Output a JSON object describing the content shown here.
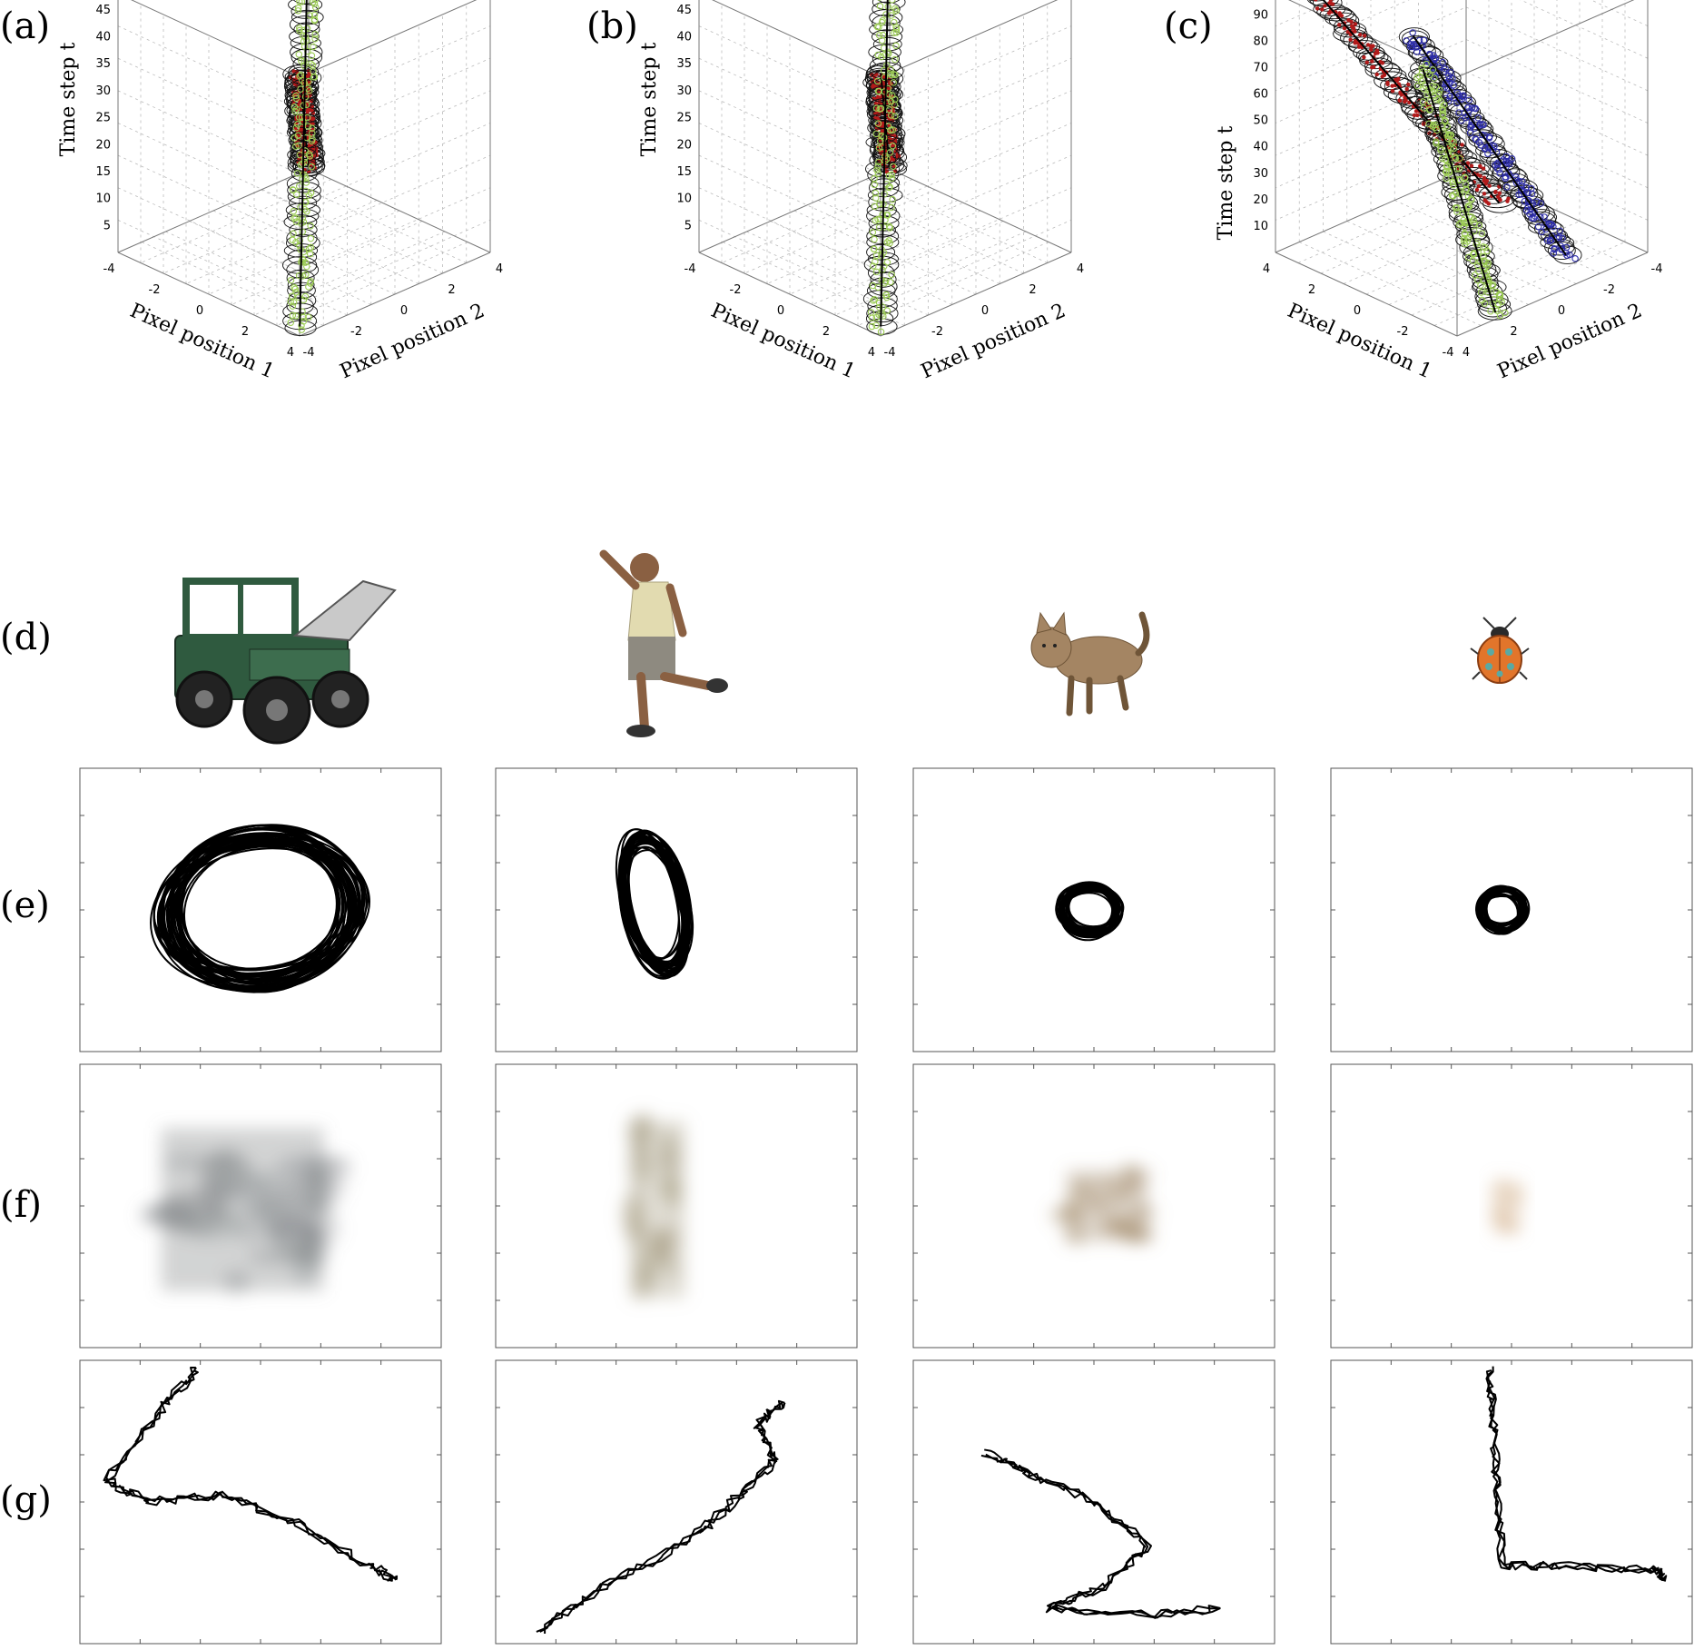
{
  "panel_labels": {
    "a": "(a)",
    "b": "(b)",
    "c": "(c)",
    "d": "(d)",
    "e": "(e)",
    "f": "(f)",
    "g": "(g)"
  },
  "axis_titles": {
    "time": "Time step t",
    "pixel1": "Pixel position 1",
    "pixel2": "Pixel position 2"
  },
  "colors": {
    "track_red": "#b21a1a",
    "track_green": "#9ccc55",
    "track_blue": "#2c2ca8",
    "line_black": "#000000",
    "frame": "#555555"
  },
  "object_icons": [
    "vehicle-utility-truck",
    "running-person",
    "cat",
    "ladybug"
  ],
  "chart_data": [
    {
      "panel": "a",
      "type": "scatter",
      "subtype": "3d-tracks",
      "title": "",
      "xlabel": "Pixel position 1",
      "ylabel": "Pixel position 2",
      "zlabel": "Time step t",
      "xlim": [
        -4,
        4
      ],
      "ylim": [
        -4,
        4
      ],
      "zlim": [
        0,
        48
      ],
      "x_ticks": [
        "-4",
        "-2",
        "0",
        "2",
        "4"
      ],
      "y_ticks": [
        "-4",
        "-2",
        "0",
        "2",
        "4"
      ],
      "z_ticks": [
        "5",
        "10",
        "15",
        "20",
        "25",
        "30",
        "35",
        "40",
        "45"
      ],
      "grid": true,
      "series": [
        {
          "color": "red",
          "start": [
            -3.8,
            -3.8,
            1
          ],
          "end": [
            3.8,
            3.8,
            48
          ]
        },
        {
          "color": "green",
          "start": [
            3.8,
            3.8,
            1
          ],
          "end": [
            -3.8,
            -3.8,
            48
          ]
        }
      ]
    },
    {
      "panel": "b",
      "type": "scatter",
      "subtype": "3d-tracks",
      "title": "",
      "xlabel": "Pixel position 1",
      "ylabel": "Pixel position 2",
      "zlabel": "Time step t",
      "xlim": [
        -4,
        4
      ],
      "ylim": [
        -4,
        4
      ],
      "zlim": [
        0,
        48
      ],
      "x_ticks": [
        "-4",
        "-2",
        "0",
        "2",
        "4"
      ],
      "y_ticks": [
        "-4",
        "-2",
        "0",
        "2",
        "4"
      ],
      "z_ticks": [
        "5",
        "10",
        "15",
        "20",
        "25",
        "30",
        "35",
        "40",
        "45"
      ],
      "grid": true,
      "series": [
        {
          "color": "red",
          "start": [
            -3.8,
            -3.8,
            1
          ],
          "end": [
            3.8,
            3.8,
            48
          ]
        },
        {
          "color": "green",
          "start": [
            3.8,
            3.8,
            1
          ],
          "end": [
            -3.8,
            -3.8,
            48
          ]
        }
      ]
    },
    {
      "panel": "c",
      "type": "scatter",
      "subtype": "3d-tracks",
      "title": "",
      "xlabel": "Pixel position 1",
      "ylabel": "Pixel position 2",
      "zlabel": "Time step t",
      "xlim": [
        -4,
        4
      ],
      "ylim": [
        -4,
        4
      ],
      "zlim": [
        0,
        98
      ],
      "x_ticks": [
        "4",
        "2",
        "0",
        "-2",
        "-4"
      ],
      "y_ticks": [
        "4",
        "2",
        "0",
        "-2",
        "-4"
      ],
      "z_ticks": [
        "10",
        "20",
        "30",
        "40",
        "50",
        "60",
        "70",
        "80",
        "90"
      ],
      "grid": true,
      "series": [
        {
          "color": "red",
          "start": [
            1.5,
            3.0,
            1
          ],
          "end": [
            4.0,
            -2.5,
            95
          ]
        },
        {
          "color": "blue",
          "start": [
            -2.5,
            2.0,
            1
          ],
          "end": [
            -1.0,
            -3.0,
            98
          ]
        },
        {
          "color": "green",
          "start": [
            -3.8,
            -2.2,
            1
          ],
          "end": [
            -2.5,
            -4.0,
            95
          ]
        }
      ]
    },
    {
      "panel": "e",
      "type": "line",
      "subtype": "closed-curves",
      "objects": [
        {
          "object": "vehicle",
          "shape": "ellipse",
          "cx": 0.0,
          "cy": 0.0,
          "rx": 0.55,
          "ry": 0.45,
          "tilt_deg": -8,
          "loops": 40
        },
        {
          "object": "person",
          "shape": "ellipse",
          "cx": -0.12,
          "cy": 0.05,
          "rx": 0.17,
          "ry": 0.4,
          "tilt_deg": -12,
          "loops": 30
        },
        {
          "object": "cat",
          "shape": "ellipse",
          "cx": -0.02,
          "cy": 0.0,
          "rx": 0.16,
          "ry": 0.14,
          "tilt_deg": 0,
          "loops": 25
        },
        {
          "object": "ladybug",
          "shape": "ellipse",
          "cx": -0.05,
          "cy": 0.0,
          "rx": 0.12,
          "ry": 0.12,
          "tilt_deg": 0,
          "loops": 25
        }
      ]
    },
    {
      "panel": "f",
      "type": "heatmap",
      "subtype": "blurred-appearance",
      "objects": [
        {
          "object": "vehicle",
          "tone": "#7d8284",
          "extent": [
            -0.55,
            -0.6,
            0.35,
            0.55
          ]
        },
        {
          "object": "person",
          "tone": "#a79e84",
          "extent": [
            -0.25,
            -0.65,
            0.05,
            0.6
          ]
        },
        {
          "object": "cat",
          "tone": "#9f8766",
          "extent": [
            -0.15,
            -0.25,
            0.3,
            0.25
          ]
        },
        {
          "object": "ladybug",
          "tone": "#d2b08a",
          "extent": [
            -0.1,
            -0.18,
            0.05,
            0.18
          ]
        }
      ]
    },
    {
      "panel": "g",
      "type": "line",
      "subtype": "trajectories",
      "objects": [
        {
          "object": "vehicle",
          "points": [
            [
              -0.35,
              0.95
            ],
            [
              -0.55,
              0.65
            ],
            [
              -0.85,
              0.15
            ],
            [
              -0.62,
              0.0
            ],
            [
              -0.2,
              0.05
            ],
            [
              0.2,
              -0.15
            ],
            [
              0.6,
              -0.45
            ],
            [
              0.75,
              -0.55
            ]
          ]
        },
        {
          "object": "person",
          "points": [
            [
              -0.75,
              -0.9
            ],
            [
              -0.4,
              -0.6
            ],
            [
              0.1,
              -0.25
            ],
            [
              0.35,
              0.05
            ],
            [
              0.55,
              0.3
            ],
            [
              0.45,
              0.55
            ],
            [
              0.6,
              0.7
            ]
          ]
        },
        {
          "object": "cat",
          "points": [
            [
              -0.6,
              0.35
            ],
            [
              -0.35,
              0.2
            ],
            [
              0.0,
              0.0
            ],
            [
              0.3,
              -0.3
            ],
            [
              0.05,
              -0.6
            ],
            [
              -0.25,
              -0.75
            ],
            [
              0.3,
              -0.8
            ],
            [
              0.7,
              -0.75
            ]
          ]
        },
        {
          "object": "ladybug",
          "points": [
            [
              -0.12,
              0.95
            ],
            [
              -0.1,
              0.55
            ],
            [
              -0.08,
              0.1
            ],
            [
              -0.05,
              -0.45
            ],
            [
              0.3,
              -0.45
            ],
            [
              0.8,
              -0.48
            ],
            [
              0.85,
              -0.55
            ]
          ]
        }
      ]
    }
  ]
}
